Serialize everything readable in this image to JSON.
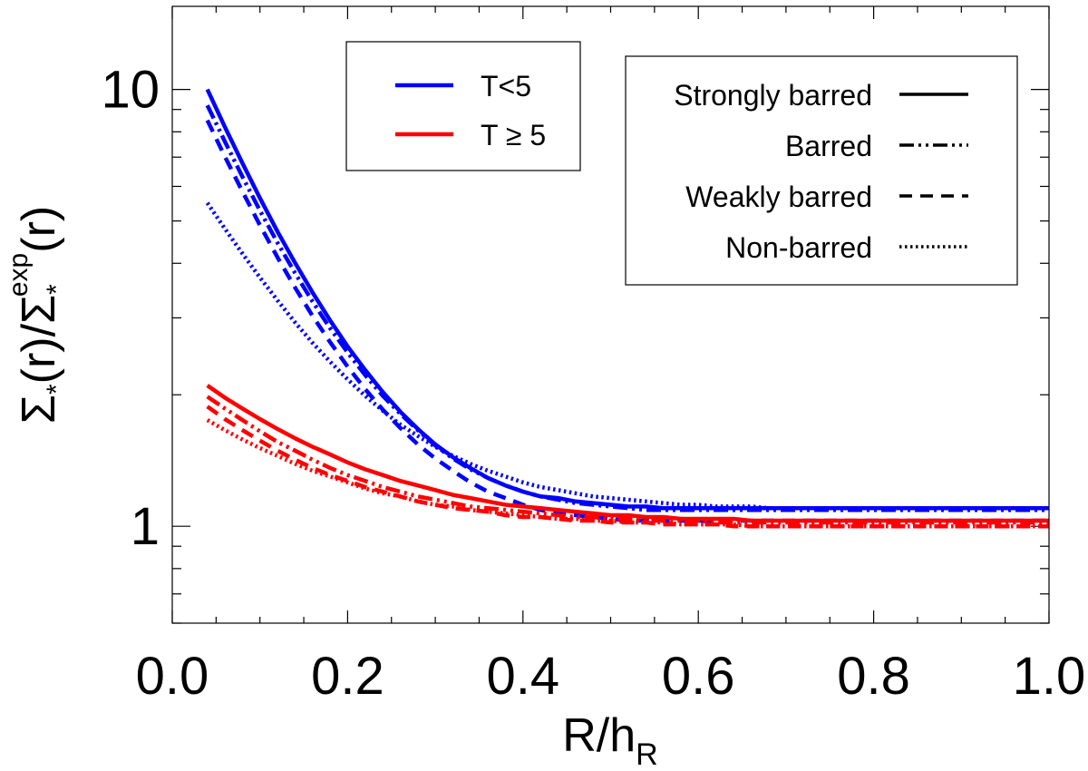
{
  "chart_data": {
    "type": "line",
    "xlabel_main": "R/h",
    "xlabel_sub": "R",
    "ylabel_parts": {
      "sigma1": "Σ",
      "sub1": "*",
      "mid": "(r)/",
      "sigma2": "Σ",
      "sub2": "*",
      "sup2": "exp",
      "end": "(r)"
    },
    "xlim": [
      0.0,
      1.0
    ],
    "ylim": [
      0.6,
      15.5
    ],
    "yscale": "log",
    "xticks": [
      0.0,
      0.2,
      0.4,
      0.6,
      0.8,
      1.0
    ],
    "xtick_labels": [
      "0.0",
      "0.2",
      "0.4",
      "0.6",
      "0.8",
      "1.0"
    ],
    "yticks": [
      1,
      10
    ],
    "ytick_labels": [
      "1",
      "10"
    ],
    "colors": {
      "T<5": "#0000ff",
      "T>=5": "#ff0000"
    },
    "x": [
      0.04,
      0.06,
      0.08,
      0.1,
      0.12,
      0.14,
      0.16,
      0.18,
      0.2,
      0.22,
      0.24,
      0.26,
      0.28,
      0.3,
      0.32,
      0.34,
      0.36,
      0.38,
      0.4,
      0.42,
      0.44,
      0.46,
      0.48,
      0.5,
      0.52,
      0.54,
      0.56,
      0.58,
      0.6,
      0.62,
      0.64,
      0.66,
      0.68,
      0.7,
      0.72,
      0.74,
      0.76,
      0.78,
      0.8,
      0.82,
      0.84,
      0.86,
      0.88,
      0.9,
      0.92,
      0.94,
      0.96,
      0.98,
      1.0
    ],
    "series": [
      {
        "name": "T<5 Strongly barred",
        "group": "T<5",
        "style": "solid",
        "values": [
          10.0,
          8.21,
          6.78,
          5.64,
          4.73,
          4.01,
          3.43,
          2.96,
          2.58,
          2.28,
          2.03,
          1.83,
          1.67,
          1.54,
          1.44,
          1.36,
          1.29,
          1.24,
          1.2,
          1.17,
          1.16,
          1.14,
          1.13,
          1.12,
          1.11,
          1.11,
          1.1,
          1.1,
          1.1,
          1.1,
          1.1,
          1.1,
          1.1,
          1.1,
          1.1,
          1.1,
          1.1,
          1.1,
          1.1,
          1.1,
          1.1,
          1.1,
          1.1,
          1.1,
          1.1,
          1.1,
          1.1,
          1.1,
          1.1
        ]
      },
      {
        "name": "T<5 Barred",
        "group": "T<5",
        "style": "dashdotdot",
        "values": [
          9.2,
          7.6,
          6.31,
          5.28,
          4.46,
          3.8,
          3.27,
          2.84,
          2.5,
          2.22,
          1.99,
          1.81,
          1.66,
          1.53,
          1.43,
          1.35,
          1.29,
          1.24,
          1.2,
          1.17,
          1.15,
          1.13,
          1.12,
          1.11,
          1.1,
          1.09,
          1.09,
          1.09,
          1.09,
          1.09,
          1.09,
          1.09,
          1.09,
          1.09,
          1.09,
          1.09,
          1.09,
          1.09,
          1.09,
          1.09,
          1.09,
          1.09,
          1.09,
          1.09,
          1.09,
          1.09,
          1.09,
          1.09,
          1.09
        ]
      },
      {
        "name": "T<5 Weakly barred",
        "group": "T<5",
        "style": "dashed",
        "values": [
          8.5,
          7.02,
          5.84,
          4.89,
          4.13,
          3.52,
          3.03,
          2.64,
          2.32,
          2.06,
          1.85,
          1.68,
          1.54,
          1.43,
          1.34,
          1.26,
          1.2,
          1.16,
          1.12,
          1.09,
          1.07,
          1.06,
          1.05,
          1.04,
          1.03,
          1.03,
          1.03,
          1.03,
          1.03,
          1.03,
          1.03,
          1.03,
          1.03,
          1.03,
          1.03,
          1.03,
          1.03,
          1.03,
          1.03,
          1.03,
          1.03,
          1.03,
          1.03,
          1.03,
          1.03,
          1.03,
          1.03,
          1.03,
          1.03
        ]
      },
      {
        "name": "T<5 Non-barred",
        "group": "T<5",
        "style": "dotted",
        "values": [
          5.5,
          4.8,
          4.21,
          3.71,
          3.29,
          2.93,
          2.63,
          2.38,
          2.17,
          1.99,
          1.84,
          1.71,
          1.61,
          1.52,
          1.45,
          1.39,
          1.34,
          1.3,
          1.26,
          1.23,
          1.21,
          1.19,
          1.17,
          1.16,
          1.15,
          1.14,
          1.13,
          1.12,
          1.12,
          1.11,
          1.11,
          1.11,
          1.1,
          1.1,
          1.1,
          1.1,
          1.1,
          1.1,
          1.1,
          1.1,
          1.1,
          1.1,
          1.1,
          1.1,
          1.1,
          1.1,
          1.1,
          1.1,
          1.1
        ]
      },
      {
        "name": "T≥5 Strongly barred",
        "group": "T>=5",
        "style": "solid",
        "values": [
          2.1,
          1.97,
          1.86,
          1.76,
          1.67,
          1.59,
          1.52,
          1.46,
          1.4,
          1.35,
          1.31,
          1.27,
          1.24,
          1.21,
          1.18,
          1.16,
          1.14,
          1.12,
          1.11,
          1.1,
          1.09,
          1.08,
          1.07,
          1.06,
          1.06,
          1.05,
          1.05,
          1.04,
          1.04,
          1.04,
          1.04,
          1.03,
          1.03,
          1.03,
          1.03,
          1.03,
          1.03,
          1.03,
          1.03,
          1.03,
          1.03,
          1.03,
          1.03,
          1.03,
          1.03,
          1.03,
          1.03,
          1.03,
          1.03
        ]
      },
      {
        "name": "T≥5 Barred",
        "group": "T>=5",
        "style": "dashdotdot",
        "values": [
          1.98,
          1.86,
          1.75,
          1.65,
          1.56,
          1.49,
          1.42,
          1.36,
          1.31,
          1.27,
          1.23,
          1.2,
          1.17,
          1.15,
          1.13,
          1.11,
          1.1,
          1.09,
          1.08,
          1.07,
          1.06,
          1.05,
          1.05,
          1.04,
          1.04,
          1.03,
          1.03,
          1.03,
          1.03,
          1.02,
          1.02,
          1.02,
          1.02,
          1.02,
          1.02,
          1.02,
          1.02,
          1.02,
          1.02,
          1.02,
          1.02,
          1.02,
          1.02,
          1.02,
          1.02,
          1.02,
          1.02,
          1.02,
          1.02
        ]
      },
      {
        "name": "T≥5 Weakly barred",
        "group": "T>=5",
        "style": "dashed",
        "values": [
          1.88,
          1.76,
          1.66,
          1.57,
          1.49,
          1.42,
          1.36,
          1.31,
          1.27,
          1.23,
          1.2,
          1.17,
          1.14,
          1.12,
          1.1,
          1.09,
          1.08,
          1.06,
          1.05,
          1.05,
          1.04,
          1.03,
          1.03,
          1.02,
          1.02,
          1.02,
          1.01,
          1.01,
          1.01,
          1.01,
          1.0,
          1.0,
          1.0,
          1.0,
          1.0,
          1.0,
          1.0,
          1.0,
          1.0,
          1.0,
          1.0,
          1.0,
          1.0,
          1.0,
          1.0,
          1.0,
          1.0,
          1.0,
          1.0
        ]
      },
      {
        "name": "T≥5 Non-barred",
        "group": "T>=5",
        "style": "dotted",
        "values": [
          1.75,
          1.66,
          1.58,
          1.51,
          1.45,
          1.39,
          1.34,
          1.3,
          1.26,
          1.22,
          1.19,
          1.17,
          1.14,
          1.12,
          1.11,
          1.09,
          1.08,
          1.07,
          1.06,
          1.05,
          1.04,
          1.04,
          1.03,
          1.03,
          1.02,
          1.02,
          1.02,
          1.01,
          1.01,
          1.01,
          1.01,
          1.0,
          1.0,
          1.0,
          1.0,
          1.0,
          1.0,
          1.0,
          1.0,
          1.0,
          1.0,
          1.0,
          1.0,
          1.0,
          1.0,
          1.0,
          1.0,
          1.0,
          1.0
        ]
      }
    ],
    "legend_color": {
      "placement": "top-left",
      "entries": [
        {
          "label": "T<5",
          "color": "#0000ff"
        },
        {
          "label": "T ≥ 5",
          "color": "#ff0000"
        }
      ]
    },
    "legend_style": {
      "placement": "top-right",
      "entries": [
        {
          "label": "Strongly barred",
          "style": "solid"
        },
        {
          "label": "Barred",
          "style": "dashdotdot"
        },
        {
          "label": "Weakly barred",
          "style": "dashed"
        },
        {
          "label": "Non-barred",
          "style": "dotted"
        }
      ]
    }
  }
}
